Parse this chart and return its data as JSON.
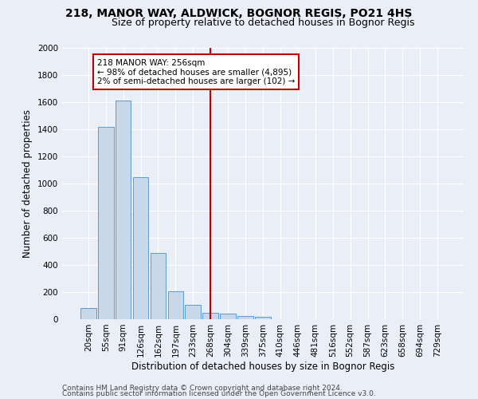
{
  "title1": "218, MANOR WAY, ALDWICK, BOGNOR REGIS, PO21 4HS",
  "title2": "Size of property relative to detached houses in Bognor Regis",
  "xlabel": "Distribution of detached houses by size in Bognor Regis",
  "ylabel": "Number of detached properties",
  "bar_labels": [
    "20sqm",
    "55sqm",
    "91sqm",
    "126sqm",
    "162sqm",
    "197sqm",
    "233sqm",
    "268sqm",
    "304sqm",
    "339sqm",
    "375sqm",
    "410sqm",
    "446sqm",
    "481sqm",
    "516sqm",
    "552sqm",
    "587sqm",
    "623sqm",
    "658sqm",
    "694sqm",
    "729sqm"
  ],
  "bar_values": [
    80,
    1420,
    1610,
    1050,
    490,
    205,
    105,
    50,
    40,
    25,
    20,
    0,
    0,
    0,
    0,
    0,
    0,
    0,
    0,
    0,
    0
  ],
  "bar_color": "#c8d8e8",
  "bar_edge_color": "#5b9bd5",
  "vline_color": "#c00000",
  "vline_bar_index": 7,
  "annotation_line1": "218 MANOR WAY: 256sqm",
  "annotation_line2": "← 98% of detached houses are smaller (4,895)",
  "annotation_line3": "2% of semi-detached houses are larger (102) →",
  "annotation_box_facecolor": "#ffffff",
  "annotation_box_edgecolor": "#c00000",
  "ylim": [
    0,
    2000
  ],
  "yticks": [
    0,
    200,
    400,
    600,
    800,
    1000,
    1200,
    1400,
    1600,
    1800,
    2000
  ],
  "footer1": "Contains HM Land Registry data © Crown copyright and database right 2024.",
  "footer2": "Contains public sector information licensed under the Open Government Licence v3.0.",
  "bg_color": "#eaeff7",
  "plot_bg_color": "#eaeff7",
  "title1_fontsize": 10,
  "title2_fontsize": 9,
  "xlabel_fontsize": 8.5,
  "ylabel_fontsize": 8.5,
  "tick_fontsize": 7.5,
  "annot_fontsize": 7.5,
  "footer_fontsize": 6.5
}
